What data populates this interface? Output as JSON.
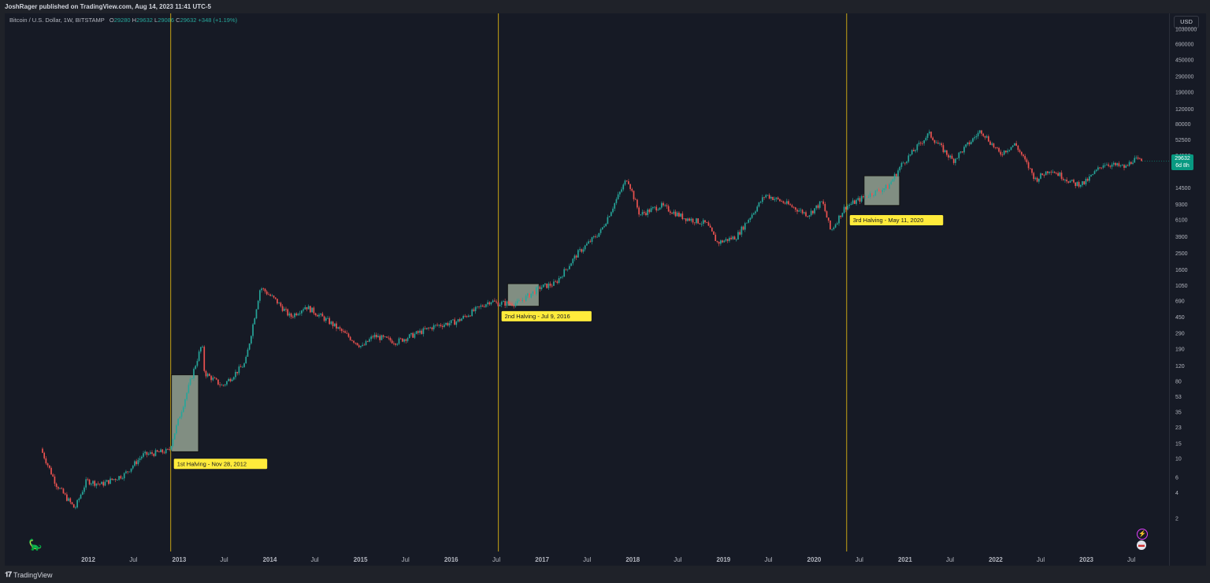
{
  "header": {
    "publisher_line": "JoshRager published on TradingView.com, Aug 14, 2023 11:41 UTC-5"
  },
  "legend": {
    "symbol": "Bitcoin / U.S. Dollar, 1W, BITSTAMP",
    "open_label": "O",
    "open": "29280",
    "high_label": "H",
    "high": "29632",
    "low_label": "L",
    "low": "29086",
    "close_label": "C",
    "close": "29632",
    "change": "+348 (+1.19%)"
  },
  "price_axis": {
    "currency_label": "USD",
    "ticks": [
      "1030000",
      "690000",
      "450000",
      "290000",
      "190000",
      "120000",
      "80000",
      "52500",
      "34500",
      "14500",
      "9300",
      "6100",
      "3900",
      "2500",
      "1600",
      "1050",
      "690",
      "450",
      "290",
      "190",
      "120",
      "80",
      "53",
      "35",
      "23",
      "15",
      "10",
      "6",
      "4",
      "2"
    ]
  },
  "last_price": {
    "price": "29632",
    "countdown": "6d 8h"
  },
  "colors": {
    "up": "#26a69a",
    "down": "#ef5350",
    "halving_line": "#c8a415",
    "box_fill": "#a5b5a2",
    "label_bg": "#ffeb3b",
    "background": "#161a25"
  },
  "footer": {
    "brand": "TradingView",
    "brand_icon": "tradingview-logo-icon"
  },
  "chart_data": {
    "type": "candlestick",
    "scale": "log",
    "ylim": [
      1.5,
      1030000
    ],
    "xlim": [
      "2011-06-01",
      "2023-11-01"
    ],
    "x_ticks": [
      "2012",
      "Jul",
      "2013",
      "Jul",
      "2014",
      "Jul",
      "2015",
      "Jul",
      "2016",
      "Jul",
      "2017",
      "Jul",
      "2018",
      "Jul",
      "2019",
      "Jul",
      "2020",
      "Jul",
      "2021",
      "Jul",
      "2022",
      "Jul",
      "2023",
      "Jul"
    ],
    "price_path": [
      {
        "date": "2011-07-01",
        "price": 13
      },
      {
        "date": "2011-09-01",
        "price": 5
      },
      {
        "date": "2011-11-15",
        "price": 2.6
      },
      {
        "date": "2012-01-01",
        "price": 5.5
      },
      {
        "date": "2012-03-01",
        "price": 5
      },
      {
        "date": "2012-06-01",
        "price": 6.5
      },
      {
        "date": "2012-08-15",
        "price": 11
      },
      {
        "date": "2012-11-28",
        "price": 12.3
      },
      {
        "date": "2013-04-10",
        "price": 220
      },
      {
        "date": "2013-04-20",
        "price": 100
      },
      {
        "date": "2013-07-01",
        "price": 70
      },
      {
        "date": "2013-10-01",
        "price": 130
      },
      {
        "date": "2013-12-01",
        "price": 1000
      },
      {
        "date": "2014-02-01",
        "price": 700
      },
      {
        "date": "2014-04-01",
        "price": 450
      },
      {
        "date": "2014-06-01",
        "price": 600
      },
      {
        "date": "2014-09-01",
        "price": 400
      },
      {
        "date": "2015-01-15",
        "price": 200
      },
      {
        "date": "2015-03-01",
        "price": 270
      },
      {
        "date": "2015-06-01",
        "price": 230
      },
      {
        "date": "2015-11-01",
        "price": 350
      },
      {
        "date": "2016-02-01",
        "price": 400
      },
      {
        "date": "2016-06-15",
        "price": 700
      },
      {
        "date": "2016-07-09",
        "price": 650
      },
      {
        "date": "2016-10-01",
        "price": 650
      },
      {
        "date": "2017-01-01",
        "price": 1000
      },
      {
        "date": "2017-03-01",
        "price": 1100
      },
      {
        "date": "2017-06-01",
        "price": 2500
      },
      {
        "date": "2017-09-01",
        "price": 4500
      },
      {
        "date": "2017-12-17",
        "price": 19000
      },
      {
        "date": "2018-02-05",
        "price": 7000
      },
      {
        "date": "2018-05-01",
        "price": 9000
      },
      {
        "date": "2018-08-01",
        "price": 6500
      },
      {
        "date": "2018-11-01",
        "price": 5500
      },
      {
        "date": "2018-12-15",
        "price": 3300
      },
      {
        "date": "2019-03-01",
        "price": 3900
      },
      {
        "date": "2019-06-26",
        "price": 12000
      },
      {
        "date": "2019-09-01",
        "price": 10000
      },
      {
        "date": "2019-12-15",
        "price": 7000
      },
      {
        "date": "2020-02-10",
        "price": 10000
      },
      {
        "date": "2020-03-15",
        "price": 4500
      },
      {
        "date": "2020-05-11",
        "price": 8600
      },
      {
        "date": "2020-08-01",
        "price": 11500
      },
      {
        "date": "2020-11-01",
        "price": 15000
      },
      {
        "date": "2020-12-25",
        "price": 27000
      },
      {
        "date": "2021-04-14",
        "price": 62000
      },
      {
        "date": "2021-07-20",
        "price": 30000
      },
      {
        "date": "2021-11-10",
        "price": 68000
      },
      {
        "date": "2022-01-24",
        "price": 36000
      },
      {
        "date": "2022-03-28",
        "price": 47000
      },
      {
        "date": "2022-06-18",
        "price": 18000
      },
      {
        "date": "2022-08-15",
        "price": 24000
      },
      {
        "date": "2022-11-21",
        "price": 16000
      },
      {
        "date": "2023-01-01",
        "price": 16500
      },
      {
        "date": "2023-03-20",
        "price": 28000
      },
      {
        "date": "2023-06-15",
        "price": 25000
      },
      {
        "date": "2023-07-15",
        "price": 31000
      },
      {
        "date": "2023-08-14",
        "price": 29632
      }
    ],
    "halvings": [
      {
        "date": "2012-11-28",
        "label": "1st Halving - Nov 28, 2012",
        "box": {
          "start": "2012-12-01",
          "end": "2013-03-20",
          "low": 12,
          "high": 95
        }
      },
      {
        "date": "2016-07-09",
        "label": "2nd Halving - Jul 9, 2016",
        "box": {
          "start": "2016-08-15",
          "end": "2016-12-20",
          "low": 600,
          "high": 1100
        }
      },
      {
        "date": "2020-05-11",
        "label": "3rd Halving - May 11, 2020",
        "box": {
          "start": "2020-07-20",
          "end": "2020-12-10",
          "low": 9000,
          "high": 20000
        }
      }
    ]
  }
}
